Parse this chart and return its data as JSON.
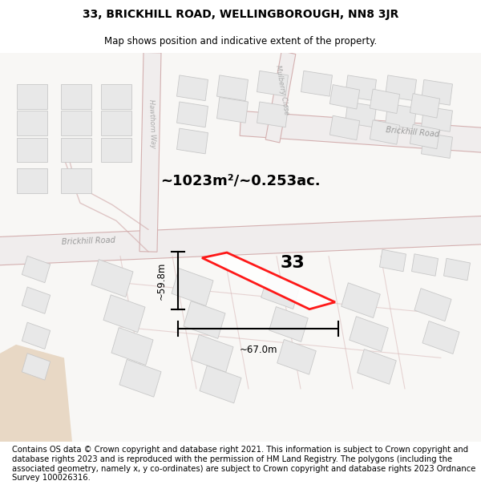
{
  "title": "33, BRICKHILL ROAD, WELLINGBOROUGH, NN8 3JR",
  "subtitle": "Map shows position and indicative extent of the property.",
  "footer": "Contains OS data © Crown copyright and database right 2021. This information is subject to Crown copyright and database rights 2023 and is reproduced with the permission of HM Land Registry. The polygons (including the associated geometry, namely x, y co-ordinates) are subject to Crown copyright and database rights 2023 Ordnance Survey 100026316.",
  "area_label": "~1023m²/~0.253ac.",
  "dim_height": "~59.8m",
  "dim_width": "~67.0m",
  "property_number": "33",
  "title_fontsize": 10,
  "subtitle_fontsize": 8.5,
  "footer_fontsize": 7.2,
  "property_color": "#ff0000",
  "map_bg": "#f8f7f5",
  "road_fill": "#f0eded",
  "road_outline": "#d4b0b0",
  "building_fill": "#e8e8e8",
  "building_outline": "#c8c8c8",
  "road_label_color": "#aaaaaa",
  "dim_color": "#000000"
}
